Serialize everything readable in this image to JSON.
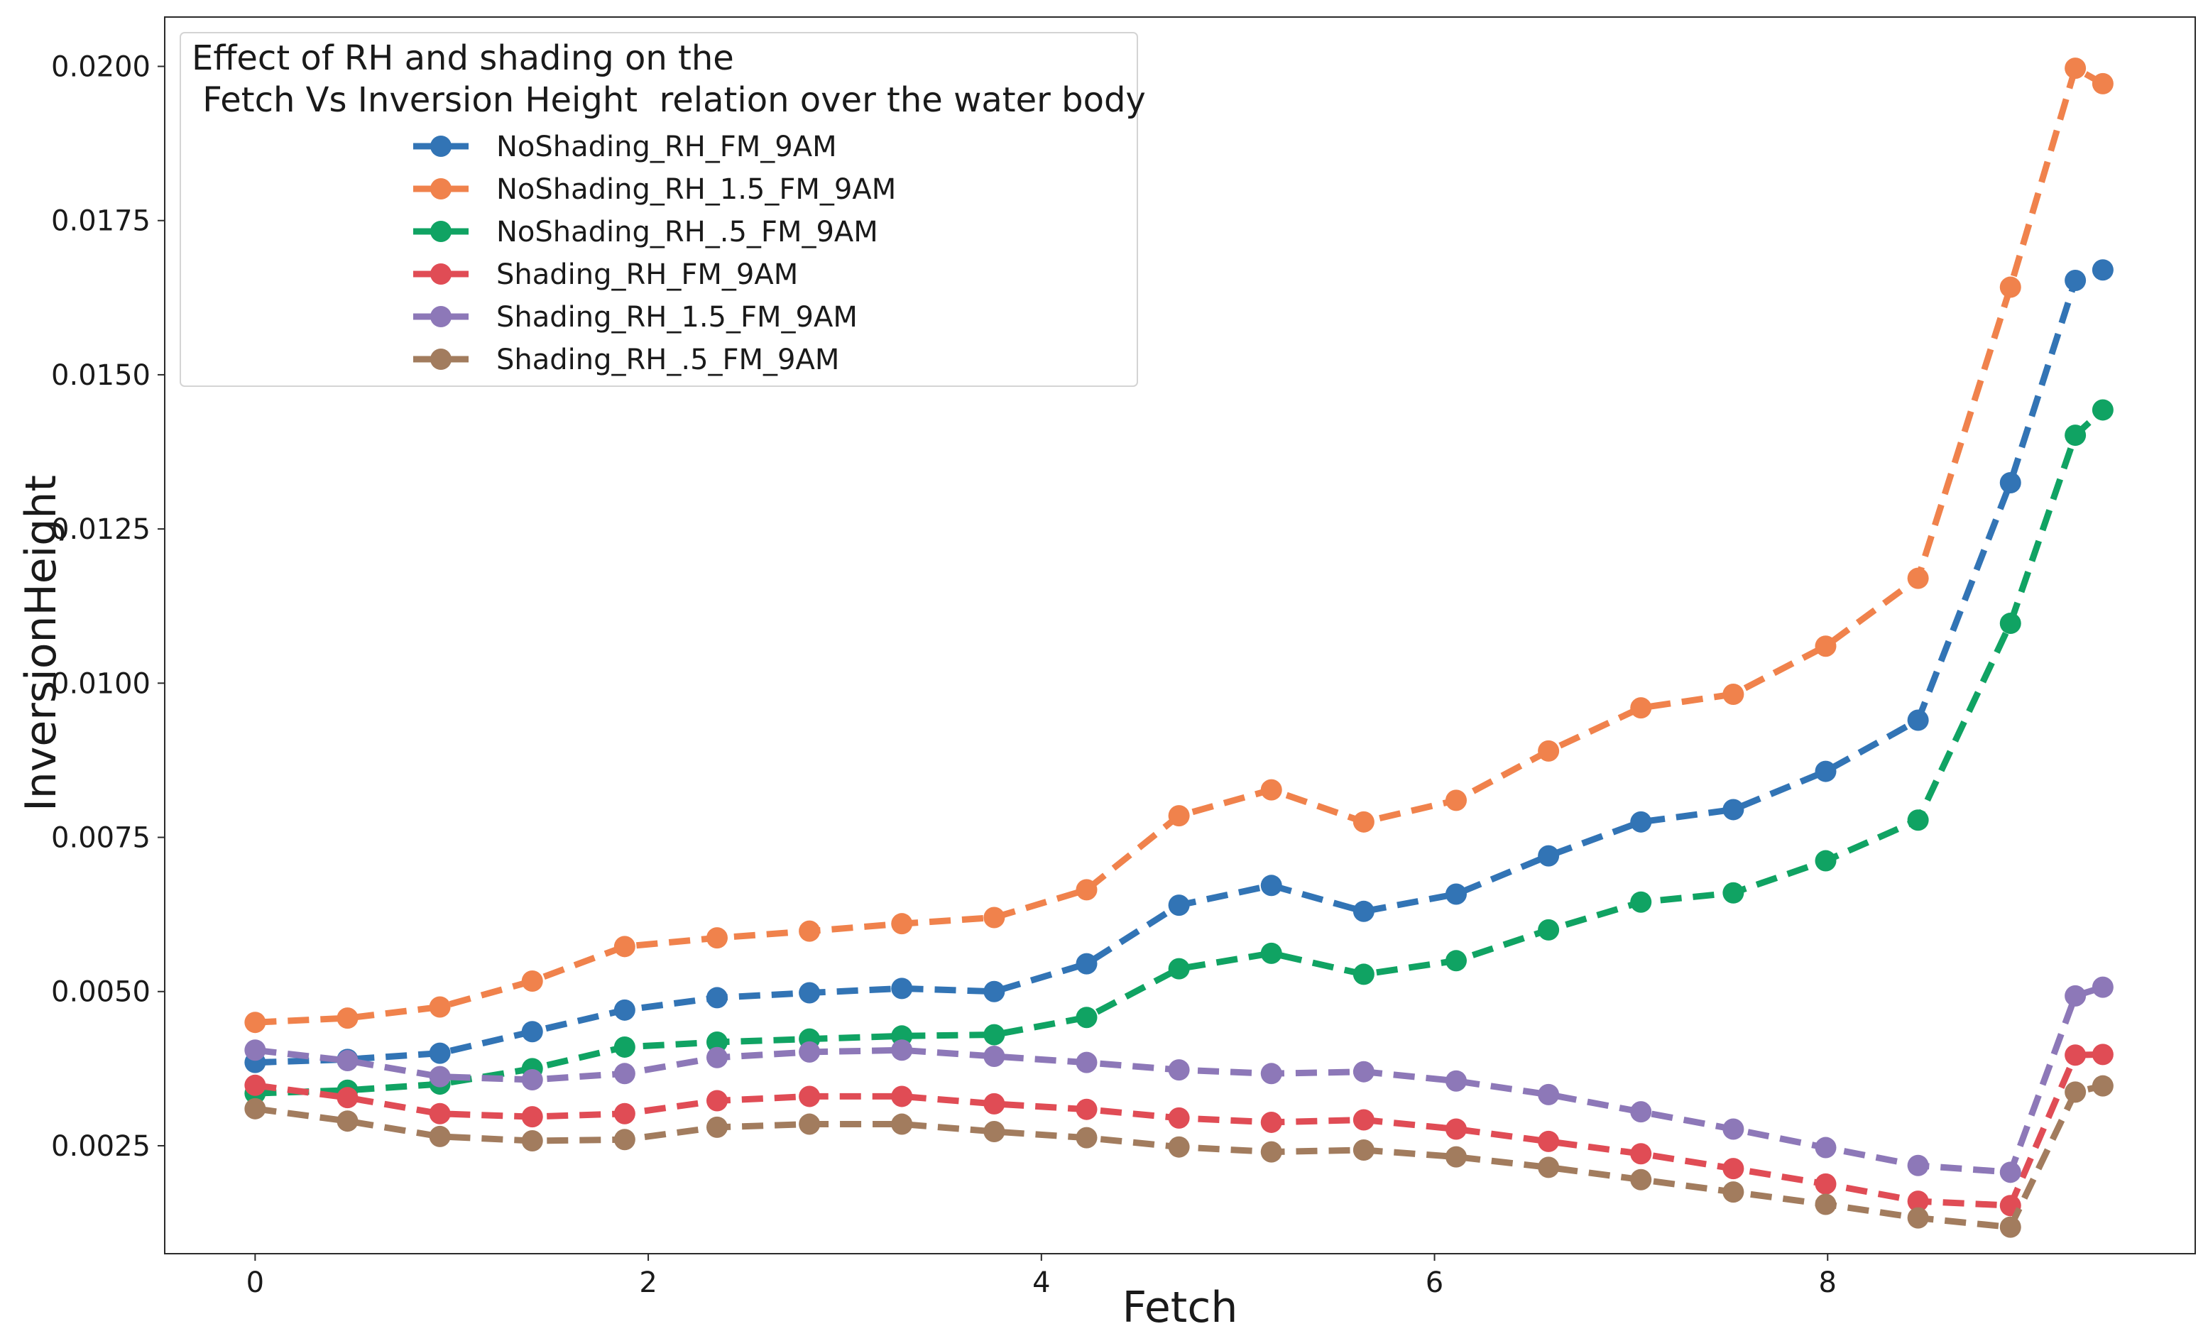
{
  "chart_data": {
    "type": "line",
    "title": "",
    "xlabel": "Fetch",
    "ylabel": "InversionHeight",
    "xlim": [
      -0.46,
      9.87
    ],
    "ylim": [
      0.00075,
      0.0208
    ],
    "xticks": [
      0,
      2,
      4,
      6,
      8
    ],
    "xtick_labels": [
      "0",
      "2",
      "4",
      "6",
      "8"
    ],
    "yticks": [
      0.0025,
      0.005,
      0.0075,
      0.01,
      0.0125,
      0.015,
      0.0175,
      0.02
    ],
    "ytick_labels": [
      "0.0025",
      "0.0050",
      "0.0075",
      "0.0100",
      "0.0125",
      "0.0150",
      "0.0175",
      "0.0200"
    ],
    "grid": false,
    "legend": {
      "placement": "top-left",
      "title_line1": "Effect of RH and shading on the",
      "title_line2": " Fetch Vs Inversion Height  relation over the water body"
    },
    "x": [
      0,
      0.47,
      0.94,
      1.41,
      1.88,
      2.35,
      2.82,
      3.29,
      3.76,
      4.23,
      4.7,
      5.17,
      5.64,
      6.11,
      6.58,
      7.05,
      7.52,
      7.99,
      8.46,
      8.93,
      9.26,
      9.4
    ],
    "series": [
      {
        "name": "NoShading_RH_FM_9AM",
        "color": "#3274b5",
        "values": [
          0.00385,
          0.0039,
          0.004,
          0.00435,
          0.0047,
          0.0049,
          0.00498,
          0.00505,
          0.005,
          0.00545,
          0.0064,
          0.00672,
          0.0063,
          0.00658,
          0.0072,
          0.00775,
          0.00795,
          0.00857,
          0.0094,
          0.01325,
          0.01653,
          0.0167
        ]
      },
      {
        "name": "NoShading_RH_1.5_FM_9AM",
        "color": "#f0824c",
        "values": [
          0.0045,
          0.00457,
          0.00475,
          0.00517,
          0.00573,
          0.00587,
          0.00598,
          0.0061,
          0.0062,
          0.00665,
          0.00785,
          0.00827,
          0.00775,
          0.0081,
          0.0089,
          0.0096,
          0.00982,
          0.0106,
          0.0117,
          0.01642,
          0.01997,
          0.01972
        ]
      },
      {
        "name": "NoShading_RH_.5_FM_9AM",
        "color": "#10a363",
        "values": [
          0.00335,
          0.0034,
          0.0035,
          0.00375,
          0.0041,
          0.00418,
          0.00423,
          0.00428,
          0.0043,
          0.00458,
          0.00537,
          0.00562,
          0.00528,
          0.0055,
          0.006,
          0.00645,
          0.0066,
          0.00712,
          0.00778,
          0.01097,
          0.01402,
          0.01443
        ]
      },
      {
        "name": "Shading_RH_FM_9AM",
        "color": "#e04c55",
        "values": [
          0.00348,
          0.00328,
          0.00302,
          0.00297,
          0.00302,
          0.00323,
          0.0033,
          0.0033,
          0.00318,
          0.00309,
          0.00295,
          0.00288,
          0.00292,
          0.00277,
          0.00257,
          0.00237,
          0.00213,
          0.00188,
          0.0016,
          0.00153,
          0.00397,
          0.00398
        ]
      },
      {
        "name": "Shading_RH_1.5_FM_9AM",
        "color": "#8d78b8",
        "values": [
          0.00405,
          0.00388,
          0.00362,
          0.00357,
          0.00367,
          0.00393,
          0.00402,
          0.00405,
          0.00395,
          0.00385,
          0.00373,
          0.00367,
          0.0037,
          0.00355,
          0.00333,
          0.00305,
          0.00277,
          0.00247,
          0.00218,
          0.00207,
          0.00493,
          0.00507
        ]
      },
      {
        "name": "Shading_RH_.5_FM_9AM",
        "color": "#a27c5e",
        "values": [
          0.0031,
          0.0029,
          0.00265,
          0.00258,
          0.0026,
          0.0028,
          0.00285,
          0.00285,
          0.00273,
          0.00263,
          0.00248,
          0.0024,
          0.00243,
          0.00232,
          0.00215,
          0.00195,
          0.00175,
          0.00155,
          0.00133,
          0.00118,
          0.00337,
          0.00347
        ]
      }
    ]
  }
}
